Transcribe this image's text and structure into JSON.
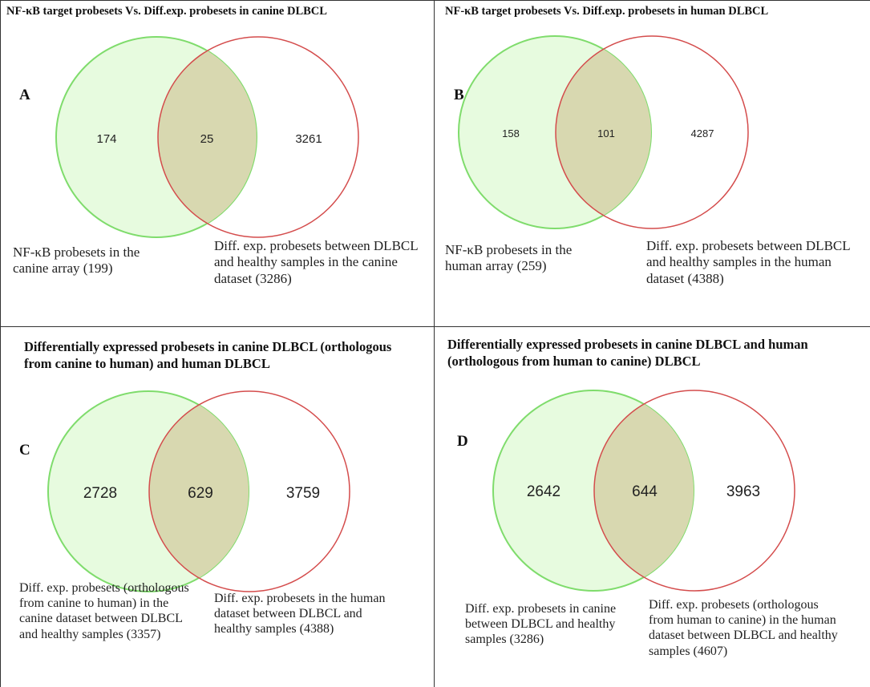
{
  "colors": {
    "green_fill": "#e7fbdf",
    "green_stroke": "#7fdc6c",
    "red_fill": "#f8d1d1",
    "red_stroke": "#d44c4c",
    "overlap_fill": "#d8d8b0"
  },
  "panels": {
    "a": {
      "title": "NF-κB target probesets Vs. Diff.exp. probesets in canine DLBCL",
      "letter": "A",
      "left_only": "174",
      "overlap": "25",
      "right_only": "3261",
      "left_caption": "NF-κB probesets in the canine array (199)",
      "right_caption": "Diff. exp. probesets between DLBCL and healthy samples in the canine dataset (3286)"
    },
    "b": {
      "title": "NF-κB target probesets Vs. Diff.exp. probesets in human DLBCL",
      "letter": "B",
      "left_only": "158",
      "overlap": "101",
      "right_only": "4287",
      "left_caption": "NF-κB probesets in the human array (259)",
      "right_caption": "Diff. exp. probesets between DLBCL and healthy samples in the human dataset (4388)"
    },
    "c": {
      "title": "Differentially expressed probesets in canine DLBCL (orthologous from canine to human) and human DLBCL",
      "letter": "C",
      "left_only": "2728",
      "overlap": "629",
      "right_only": "3759",
      "left_caption": "Diff. exp. probesets (orthologous from canine to human) in the canine dataset between DLBCL and healthy samples (3357)",
      "right_caption": "Diff. exp. probesets in the human dataset between DLBCL and healthy samples (4388)"
    },
    "d": {
      "title": "Differentially expressed probesets in canine DLBCL and human (orthologous from human to canine) DLBCL",
      "letter": "D",
      "left_only": "2642",
      "overlap": "644",
      "right_only": "3963",
      "left_caption": "Diff. exp. probesets in canine between DLBCL and healthy samples (3286)",
      "right_caption": "Diff. exp. probesets (orthologous from human to canine) in the human dataset between DLBCL and healthy samples (4607)"
    }
  }
}
